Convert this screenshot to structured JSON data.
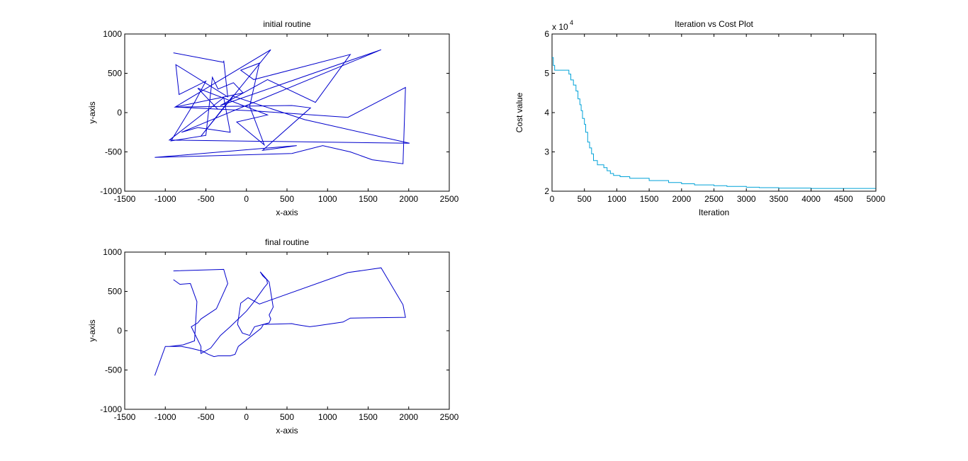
{
  "chart_data": [
    {
      "id": "initial",
      "type": "line",
      "title": "initial routine",
      "xlabel": "x-axis",
      "ylabel": "y-axis",
      "xlim": [
        -1500,
        2500
      ],
      "ylim": [
        -1000,
        1000
      ],
      "xticks": [
        -1500,
        -1000,
        -500,
        0,
        500,
        1000,
        1500,
        2000,
        2500
      ],
      "yticks": [
        -1000,
        -500,
        0,
        500,
        1000
      ],
      "grid": false,
      "series": [
        {
          "color": "#0000cc",
          "x": [
            -900,
            -280,
            -280,
            -230,
            -870,
            -830,
            -500,
            -640,
            -930,
            -500,
            -420,
            -350,
            -160,
            -40,
            -880,
            120,
            1250,
            1960,
            1930,
            1550,
            1280,
            940,
            560,
            -1130,
            620,
            200,
            790,
            560,
            -880,
            300,
            -560,
            -170,
            720,
            2010,
            -950,
            -280,
            -200,
            -600,
            -800,
            1660,
            -320,
            260,
            850,
            1280,
            90,
            -70,
            160,
            40,
            220,
            -120,
            260,
            -600,
            -350
          ],
          "y": [
            760,
            640,
            660,
            200,
            610,
            230,
            400,
            130,
            -360,
            -290,
            450,
            300,
            380,
            250,
            70,
            20,
            -60,
            320,
            -650,
            -600,
            -500,
            -420,
            -520,
            -570,
            -420,
            -480,
            60,
            90,
            70,
            800,
            -300,
            210,
            -90,
            -390,
            -350,
            190,
            -250,
            -190,
            -250,
            800,
            90,
            420,
            130,
            740,
            420,
            540,
            630,
            80,
            -410,
            -120,
            -30,
            310,
            40
          ]
        }
      ]
    },
    {
      "id": "cost",
      "type": "line",
      "title": "Iteration vs Cost Plot",
      "xlabel": "Iteration",
      "ylabel": "Cost value",
      "xlim": [
        0,
        5000
      ],
      "ylim": [
        2,
        6
      ],
      "xticks": [
        0,
        500,
        1000,
        1500,
        2000,
        2500,
        3000,
        3500,
        4000,
        4500,
        5000
      ],
      "yticks": [
        2,
        3,
        4,
        5,
        6
      ],
      "multiplier_label": "x 10",
      "multiplier_exponent": "4",
      "grid": false,
      "series": [
        {
          "color": "#00a2d8",
          "x": [
            0,
            20,
            40,
            80,
            260,
            290,
            330,
            370,
            400,
            430,
            450,
            470,
            500,
            520,
            550,
            580,
            610,
            640,
            700,
            800,
            850,
            900,
            950,
            1050,
            1200,
            1500,
            1800,
            2000,
            2200,
            2500,
            2700,
            3000,
            3200,
            3500,
            4000,
            4500,
            5000
          ],
          "y": [
            5.4,
            5.2,
            5.08,
            5.08,
            4.98,
            4.83,
            4.7,
            4.55,
            4.35,
            4.2,
            4.05,
            3.85,
            3.7,
            3.5,
            3.25,
            3.1,
            2.95,
            2.78,
            2.67,
            2.6,
            2.52,
            2.45,
            2.4,
            2.37,
            2.33,
            2.27,
            2.22,
            2.19,
            2.16,
            2.14,
            2.12,
            2.1,
            2.09,
            2.08,
            2.07,
            2.07,
            2.07
          ]
        }
      ]
    },
    {
      "id": "final",
      "type": "line",
      "title": "final routine",
      "xlabel": "x-axis",
      "ylabel": "y-axis",
      "xlim": [
        -1500,
        2500
      ],
      "ylim": [
        -1000,
        1000
      ],
      "xticks": [
        -1500,
        -1000,
        -500,
        0,
        500,
        1000,
        1500,
        2000,
        2500
      ],
      "yticks": [
        -1000,
        -500,
        0,
        500,
        1000
      ],
      "grid": false,
      "series": [
        {
          "color": "#0000cc",
          "x": [
            -900,
            -280,
            -280,
            -230,
            -370,
            -560,
            -600,
            -680,
            -560,
            -560,
            -440,
            -320,
            -200,
            -100,
            0,
            80,
            150,
            220,
            260,
            250,
            200,
            170,
            280,
            330,
            280,
            300,
            280,
            100,
            40,
            -50,
            -110,
            -70,
            20,
            160,
            1250,
            1660,
            1930,
            1960,
            1280,
            1190,
            860,
            780,
            600,
            560,
            210,
            180,
            -100,
            -140,
            -200,
            -350,
            -400,
            -470,
            -540,
            -700,
            -800,
            -1000,
            -1130,
            -1000,
            -950,
            -780,
            -640,
            -610,
            -690,
            -820,
            -900
          ],
          "y": [
            760,
            780,
            780,
            600,
            280,
            150,
            100,
            50,
            -200,
            -290,
            -220,
            -60,
            50,
            150,
            250,
            350,
            450,
            550,
            600,
            650,
            700,
            750,
            620,
            300,
            200,
            150,
            100,
            50,
            -60,
            -30,
            80,
            350,
            420,
            340,
            740,
            800,
            330,
            170,
            160,
            110,
            60,
            50,
            80,
            90,
            80,
            30,
            -200,
            -300,
            -320,
            -320,
            -330,
            -300,
            -260,
            -220,
            -200,
            -200,
            -570,
            -200,
            -200,
            -180,
            -130,
            370,
            600,
            590,
            650
          ]
        }
      ]
    }
  ]
}
